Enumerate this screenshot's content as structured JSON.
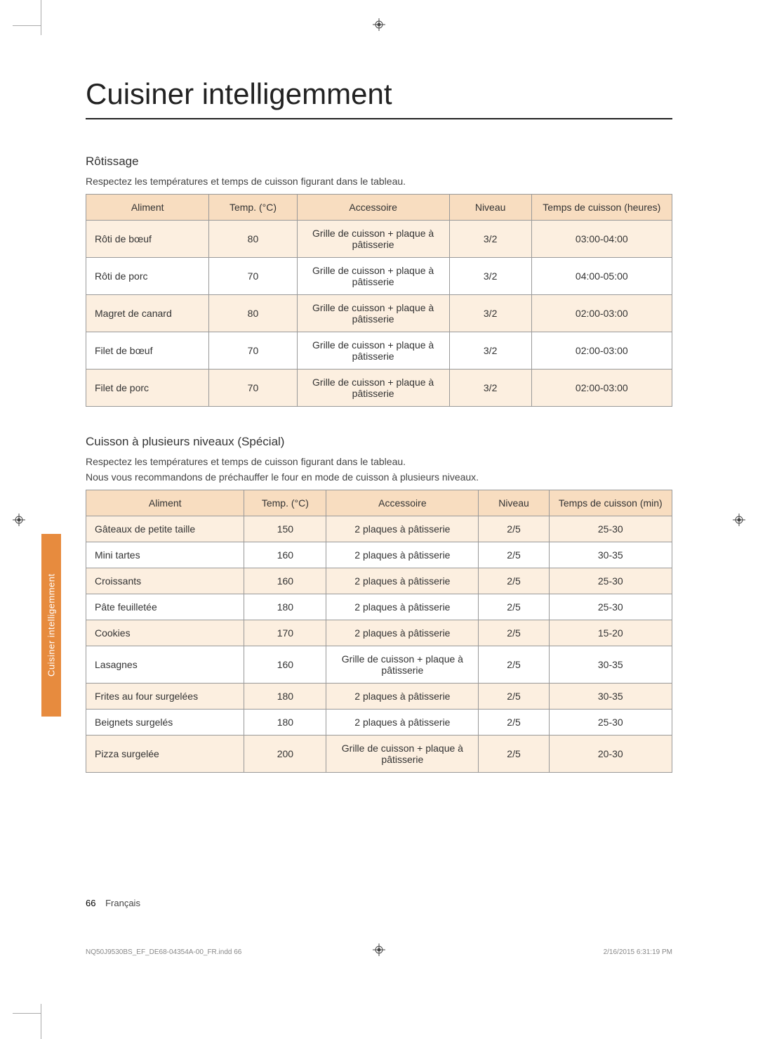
{
  "title": "Cuisiner intelligemment",
  "side_tab": "Cuisiner intelligemment",
  "section1": {
    "subtitle": "Rôtissage",
    "desc": "Respectez les températures et temps de cuisson figurant dans le tableau.",
    "headers": [
      "Aliment",
      "Temp. (°C)",
      "Accessoire",
      "Niveau",
      "Temps de cuisson (heures)"
    ],
    "rows": [
      {
        "aliment": "Rôti de bœuf",
        "temp": "80",
        "acc": "Grille de cuisson + plaque à pâtisserie",
        "niveau": "3/2",
        "temps": "03:00-04:00"
      },
      {
        "aliment": "Rôti de porc",
        "temp": "70",
        "acc": "Grille de cuisson + plaque à pâtisserie",
        "niveau": "3/2",
        "temps": "04:00-05:00"
      },
      {
        "aliment": "Magret de canard",
        "temp": "80",
        "acc": "Grille de cuisson + plaque à pâtisserie",
        "niveau": "3/2",
        "temps": "02:00-03:00"
      },
      {
        "aliment": "Filet de bœuf",
        "temp": "70",
        "acc": "Grille de cuisson + plaque à pâtisserie",
        "niveau": "3/2",
        "temps": "02:00-03:00"
      },
      {
        "aliment": "Filet de porc",
        "temp": "70",
        "acc": "Grille de cuisson + plaque à pâtisserie",
        "niveau": "3/2",
        "temps": "02:00-03:00"
      }
    ]
  },
  "section2": {
    "subtitle": "Cuisson à plusieurs niveaux (Spécial)",
    "desc1": "Respectez les températures et temps de cuisson figurant dans le tableau.",
    "desc2": "Nous vous recommandons de préchauffer le four en mode de cuisson à plusieurs niveaux.",
    "headers": [
      "Aliment",
      "Temp. (°C)",
      "Accessoire",
      "Niveau",
      "Temps de cuisson (min)"
    ],
    "rows": [
      {
        "aliment": "Gâteaux de petite taille",
        "temp": "150",
        "acc": "2 plaques à pâtisserie",
        "niveau": "2/5",
        "temps": "25-30"
      },
      {
        "aliment": "Mini tartes",
        "temp": "160",
        "acc": "2 plaques à pâtisserie",
        "niveau": "2/5",
        "temps": "30-35"
      },
      {
        "aliment": "Croissants",
        "temp": "160",
        "acc": "2 plaques à pâtisserie",
        "niveau": "2/5",
        "temps": "25-30"
      },
      {
        "aliment": "Pâte feuilletée",
        "temp": "180",
        "acc": "2 plaques à pâtisserie",
        "niveau": "2/5",
        "temps": "25-30"
      },
      {
        "aliment": "Cookies",
        "temp": "170",
        "acc": "2 plaques à pâtisserie",
        "niveau": "2/5",
        "temps": "15-20"
      },
      {
        "aliment": "Lasagnes",
        "temp": "160",
        "acc": "Grille de cuisson + plaque à pâtisserie",
        "niveau": "2/5",
        "temps": "30-35"
      },
      {
        "aliment": "Frites au four surgelées",
        "temp": "180",
        "acc": "2 plaques à pâtisserie",
        "niveau": "2/5",
        "temps": "30-35"
      },
      {
        "aliment": "Beignets surgelés",
        "temp": "180",
        "acc": "2 plaques à pâtisserie",
        "niveau": "2/5",
        "temps": "25-30"
      },
      {
        "aliment": "Pizza surgelée",
        "temp": "200",
        "acc": "Grille de cuisson + plaque à pâtisserie",
        "niveau": "2/5",
        "temps": "20-30"
      }
    ]
  },
  "footer": {
    "page_number": "66",
    "lang": "Français"
  },
  "print_footer": {
    "left": "NQ50J9530BS_EF_DE68-04354A-00_FR.indd   66",
    "right": "2/16/2015   6:31:19 PM"
  },
  "colors": {
    "header_bg": "#f8ddc0",
    "row_odd": "#fcefe0",
    "tab": "#e78b3e",
    "border": "#999999"
  }
}
